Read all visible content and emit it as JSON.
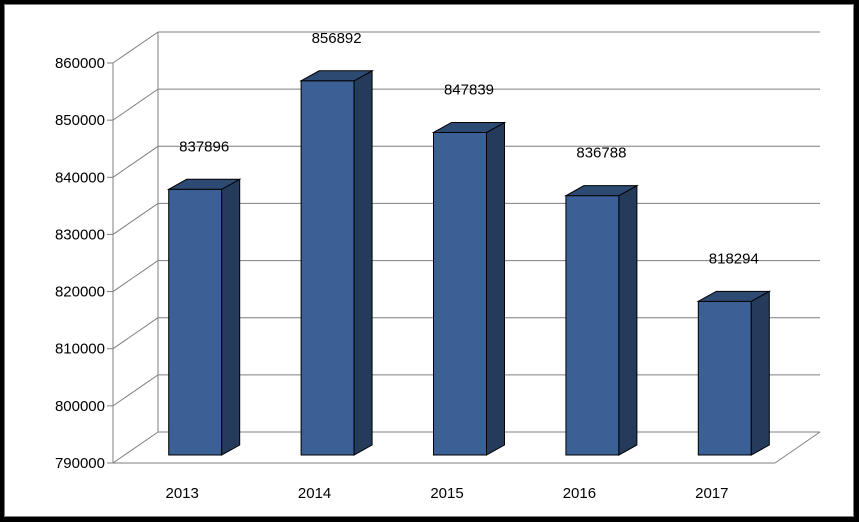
{
  "chart_data": {
    "type": "bar",
    "style": "3d-column",
    "categories": [
      "2013",
      "2014",
      "2015",
      "2016",
      "2017"
    ],
    "values": [
      837896,
      856892,
      847839,
      836788,
      818294
    ],
    "data_labels": [
      "837896",
      "856892",
      "847839",
      "836788",
      "818294"
    ],
    "y_ticks": [
      "790000",
      "800000",
      "810000",
      "820000",
      "830000",
      "840000",
      "850000",
      "860000"
    ],
    "ylim": [
      790000,
      860000
    ],
    "grid": true,
    "legend": "none",
    "colors": {
      "bar_front": "#3a6096",
      "bar_side": "#243b5c",
      "bar_top": "#2d4a73",
      "bar_edge": "#000000",
      "grid": "#7f7f7f",
      "background": "#ffffff",
      "outer": "#000000"
    }
  }
}
